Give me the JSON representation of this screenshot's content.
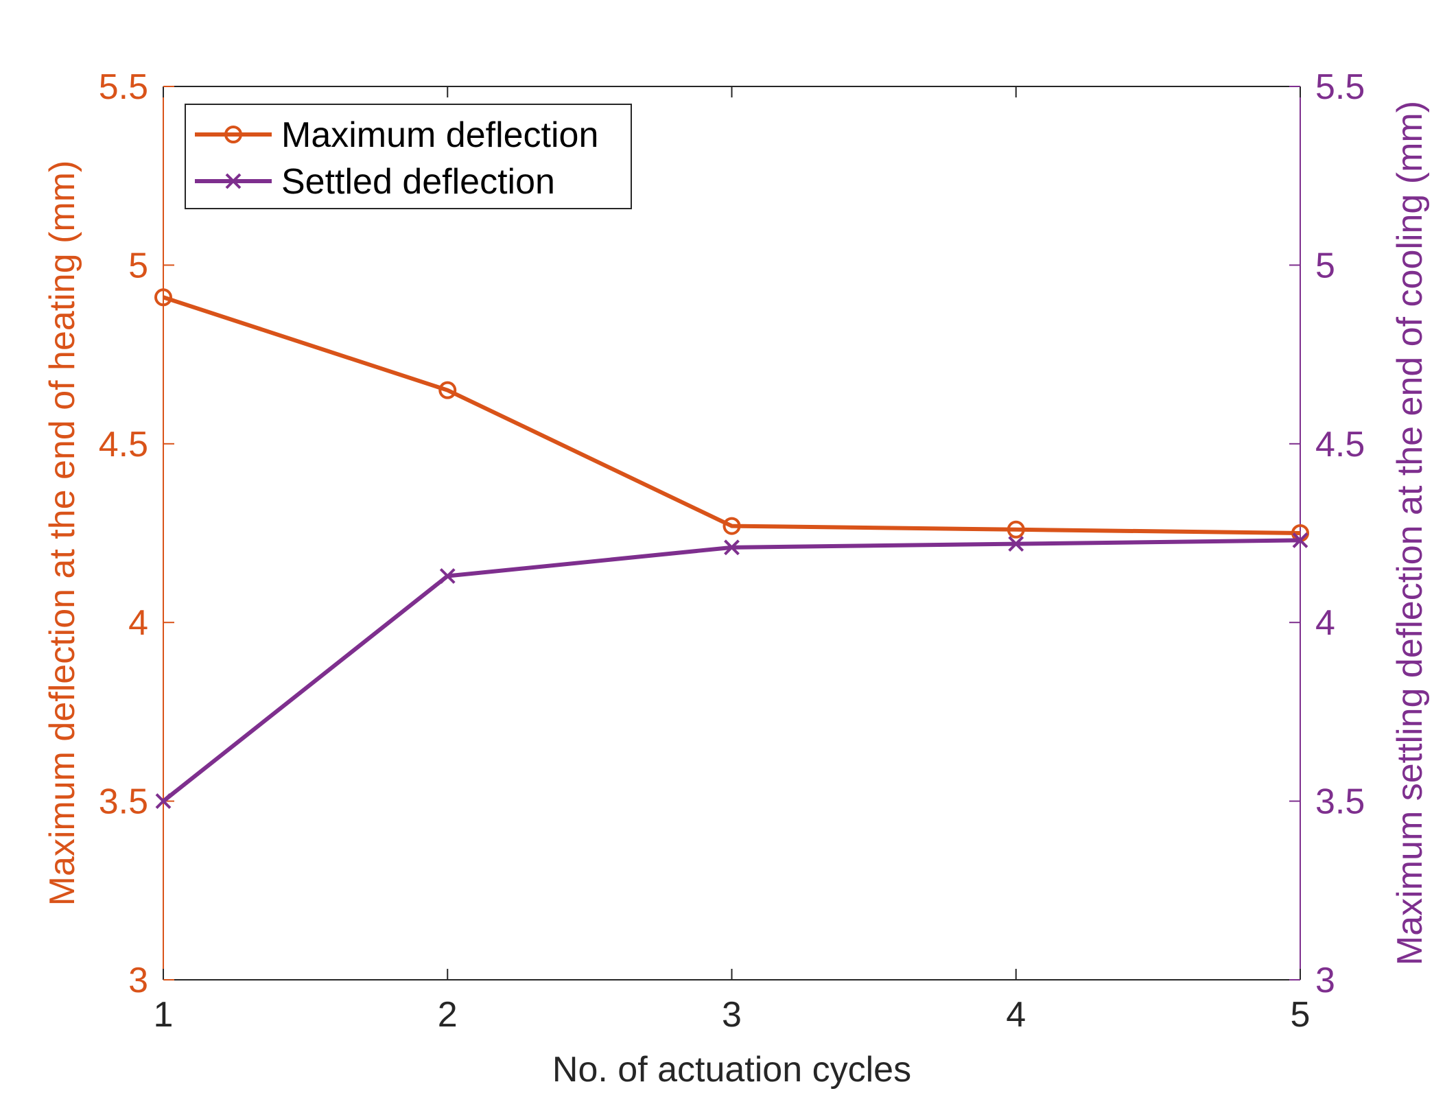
{
  "colors": {
    "series1": "#d95319",
    "series2": "#7e2f8e",
    "axis": "#262626"
  },
  "chart_data": {
    "type": "line",
    "x": [
      1,
      2,
      3,
      4,
      5
    ],
    "xlabel": "No. of actuation cycles",
    "xlim": [
      1,
      5
    ],
    "xticks": [
      1,
      2,
      3,
      4,
      5
    ],
    "y_left": {
      "label": "Maximum deflection at the end of heating (mm)",
      "lim": [
        3,
        5.5
      ],
      "ticks": [
        3,
        3.5,
        4,
        4.5,
        5,
        5.5
      ]
    },
    "y_right": {
      "label": "Maximum settling deflection at the end of cooling (mm)",
      "lim": [
        3,
        5.5
      ],
      "ticks": [
        3,
        3.5,
        4,
        4.5,
        5,
        5.5
      ]
    },
    "series": [
      {
        "name": "Maximum deflection",
        "axis": "left",
        "marker": "circle",
        "values": [
          4.91,
          4.65,
          4.27,
          4.26,
          4.25
        ]
      },
      {
        "name": "Settled deflection",
        "axis": "right",
        "marker": "x",
        "values": [
          3.5,
          4.13,
          4.21,
          4.22,
          4.23
        ]
      }
    ],
    "legend": "top-left",
    "grid": false
  }
}
